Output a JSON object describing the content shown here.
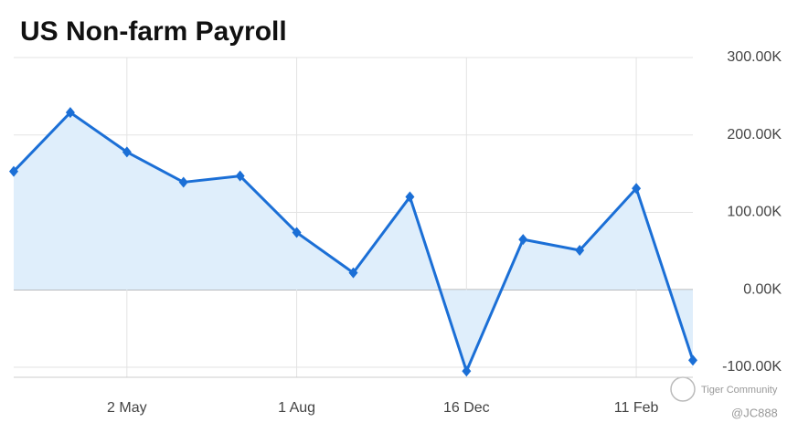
{
  "chart_data": {
    "type": "area",
    "title": "US Non-farm Payroll",
    "categories": [
      null,
      null,
      "2 May",
      null,
      null,
      "1 Aug",
      null,
      null,
      "16 Dec",
      null,
      null,
      "11 Feb",
      null
    ],
    "series": [
      {
        "color": "#1b6fd6",
        "fill": "#dfeefb",
        "values": [
          153,
          229,
          178,
          139,
          147,
          74,
          22,
          120,
          -105,
          65,
          51,
          131,
          -91
        ]
      }
    ],
    "ylim": [
      -113,
      300
    ],
    "yticks": [
      {
        "value": -100,
        "label": "-100.00K"
      },
      {
        "value": 0,
        "label": "0.00K"
      },
      {
        "value": 100,
        "label": "100.00K"
      },
      {
        "value": 200,
        "label": "200.00K"
      },
      {
        "value": 300,
        "label": "300.00K"
      }
    ],
    "grid": true,
    "annotations": [
      "Tiger Community",
      "@JC888"
    ]
  }
}
